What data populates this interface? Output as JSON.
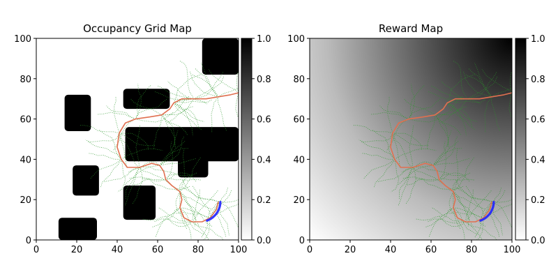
{
  "chart_data": [
    {
      "type": "heatmap",
      "title": "Occupancy Grid Map",
      "xlim": [
        0,
        100
      ],
      "ylim": [
        0,
        100
      ],
      "xticks": [
        0,
        20,
        40,
        60,
        80,
        100
      ],
      "yticks": [
        0,
        20,
        40,
        60,
        80,
        100
      ],
      "colormap": "gray_r",
      "colorbar": {
        "range": [
          0.0,
          1.0
        ],
        "ticks": [
          "0.0",
          "0.2",
          "0.4",
          "0.6",
          "0.8",
          "1.0"
        ]
      },
      "obstacles": [
        {
          "x": [
            82,
            100
          ],
          "y": [
            82,
            100
          ]
        },
        {
          "x": [
            14,
            27
          ],
          "y": [
            54,
            72
          ]
        },
        {
          "x": [
            43,
            66
          ],
          "y": [
            65,
            75
          ]
        },
        {
          "x": [
            44,
            100
          ],
          "y": [
            39,
            56
          ]
        },
        {
          "x": [
            70,
            85
          ],
          "y": [
            31,
            44
          ]
        },
        {
          "x": [
            18,
            31
          ],
          "y": [
            22,
            37
          ]
        },
        {
          "x": [
            43,
            59
          ],
          "y": [
            10,
            27
          ]
        },
        {
          "x": [
            11,
            30
          ],
          "y": [
            0,
            11
          ]
        }
      ],
      "grid": false
    },
    {
      "type": "heatmap",
      "title": "Reward Map",
      "xlim": [
        0,
        100
      ],
      "ylim": [
        0,
        100
      ],
      "xticks": [
        0,
        20,
        40,
        60,
        80,
        100
      ],
      "yticks": [
        0,
        20,
        40,
        60,
        80,
        100
      ],
      "colormap": "gray_r",
      "reward_peak": [
        100,
        100
      ],
      "colorbar": {
        "range": [
          0.0,
          1.0
        ],
        "ticks": [
          "0.0",
          "0.2",
          "0.4",
          "0.6",
          "0.8",
          "1.0"
        ]
      },
      "grid": false
    }
  ],
  "path": {
    "points": [
      [
        90,
        19
      ],
      [
        89,
        15
      ],
      [
        86,
        11
      ],
      [
        82,
        9
      ],
      [
        77,
        9
      ],
      [
        73,
        11
      ],
      [
        71,
        16
      ],
      [
        72,
        20
      ],
      [
        71,
        24
      ],
      [
        67,
        27
      ],
      [
        64,
        30
      ],
      [
        63,
        34
      ],
      [
        61,
        37
      ],
      [
        57,
        38
      ],
      [
        51,
        36
      ],
      [
        45,
        36
      ],
      [
        42,
        40
      ],
      [
        40,
        46
      ],
      [
        41,
        53
      ],
      [
        44,
        58
      ],
      [
        49,
        60
      ],
      [
        56,
        61
      ],
      [
        62,
        62
      ],
      [
        66,
        65
      ],
      [
        68,
        68
      ],
      [
        72,
        70
      ],
      [
        78,
        70
      ],
      [
        84,
        70
      ],
      [
        90,
        71
      ],
      [
        96,
        72
      ],
      [
        100,
        73
      ]
    ],
    "color": "#e07050"
  },
  "robot_arc": {
    "center": [
      81,
      19
    ],
    "radius": 10,
    "start_deg": -70,
    "end_deg": 0,
    "color": "#2020ff"
  },
  "tree_color": "#2a962a"
}
